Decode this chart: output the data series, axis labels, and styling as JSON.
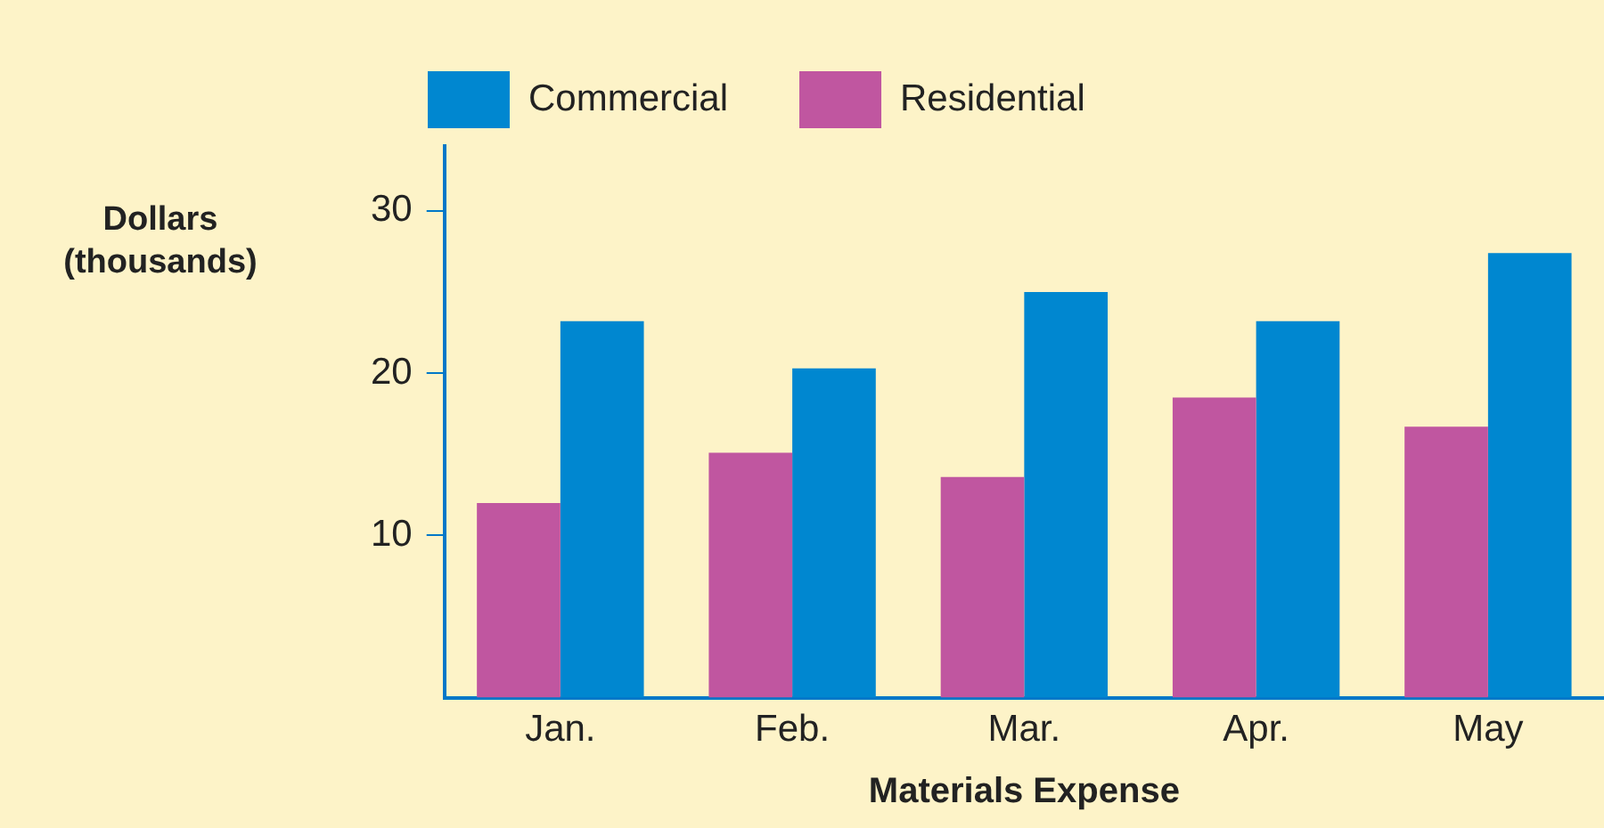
{
  "chart_data": {
    "type": "bar",
    "xlabel": "Materials Expense",
    "ylabel": "Dollars (thousands)",
    "categories": [
      "Jan.",
      "Feb.",
      "Mar.",
      "Apr.",
      "May"
    ],
    "series": [
      {
        "name": "Residential",
        "color": "#c056a0",
        "values": [
          12,
          15.1,
          13.6,
          18.5,
          16.7
        ]
      },
      {
        "name": "Commercial",
        "color": "#0087d0",
        "values": [
          23.2,
          20.3,
          25,
          23.2,
          27.4
        ]
      }
    ],
    "ylim": [
      0,
      34
    ],
    "yticks": [
      10,
      20,
      30
    ],
    "grid": false,
    "legend": "top left"
  }
}
